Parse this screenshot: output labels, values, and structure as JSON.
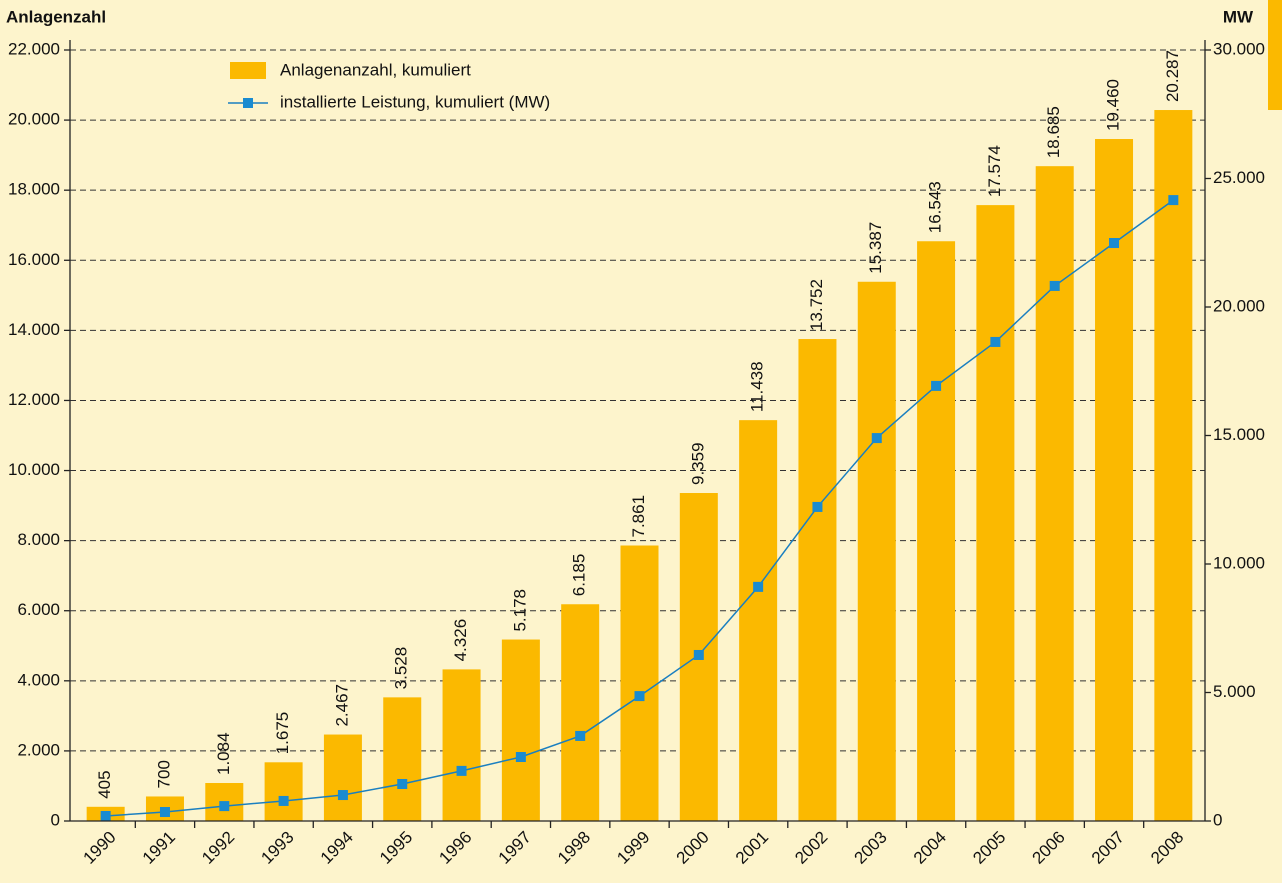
{
  "chart_data": {
    "type": "bar",
    "ylabel": "Anlagenzahl",
    "y2label": "MW",
    "categories": [
      "1990",
      "1991",
      "1992",
      "1993",
      "1994",
      "1995",
      "1996",
      "1997",
      "1998",
      "1999",
      "2000",
      "2001",
      "2002",
      "2003",
      "2004",
      "2005",
      "2006",
      "2007",
      "2008"
    ],
    "series": [
      {
        "name": "Anlagenanzahl, kumuliert",
        "type": "bar",
        "axis": "y",
        "color": "#fbb900",
        "values": [
          405,
          700,
          1084,
          1675,
          2467,
          3528,
          4326,
          5178,
          6185,
          7861,
          9359,
          11438,
          13752,
          15387,
          16543,
          17574,
          18685,
          19460,
          20287
        ],
        "value_labels": [
          "405",
          "700",
          "1.084",
          "1.675",
          "2.467",
          "3.528",
          "4.326",
          "5.178",
          "6.185",
          "7.861",
          "9.359",
          "11.438",
          "13.752",
          "15.387",
          "16.543",
          "17.574",
          "18.685",
          "19.460",
          "20.287"
        ]
      },
      {
        "name": "installierte Leistung, kumuliert (MW)",
        "type": "line",
        "axis": "y2",
        "color": "#1a7fc0",
        "values": [
          195,
          350,
          580,
          780,
          1010,
          1440,
          1950,
          2490,
          3310,
          4860,
          6460,
          9110,
          12220,
          14900,
          16930,
          18640,
          20820,
          22490,
          24160
        ]
      }
    ],
    "ylim": [
      0,
      22000
    ],
    "yticks": [
      0,
      {
        "value": 2000,
        "label": "2.000"
      },
      {
        "value": 4000,
        "label": "4.000"
      },
      {
        "value": 6000,
        "label": "6.000"
      },
      {
        "value": 8000,
        "label": "8.000"
      },
      {
        "value": 10000,
        "label": "10.000"
      },
      {
        "value": 12000,
        "label": "12.000"
      },
      {
        "value": 14000,
        "label": "14.000"
      },
      {
        "value": 16000,
        "label": "16.000"
      },
      {
        "value": 18000,
        "label": "18.000"
      },
      {
        "value": 20000,
        "label": "20.000"
      },
      {
        "value": 22000,
        "label": "22.000"
      }
    ],
    "y2lim": [
      0,
      30000
    ],
    "y2ticks": [
      0,
      {
        "value": 5000,
        "label": "5.000"
      },
      {
        "value": 10000,
        "label": "10.000"
      },
      {
        "value": 15000,
        "label": "15.000"
      },
      {
        "value": 20000,
        "label": "20.000"
      },
      {
        "value": 25000,
        "label": "25.000"
      },
      {
        "value": 30000,
        "label": "30.000"
      }
    ],
    "grid": true,
    "legend": "top-left"
  }
}
